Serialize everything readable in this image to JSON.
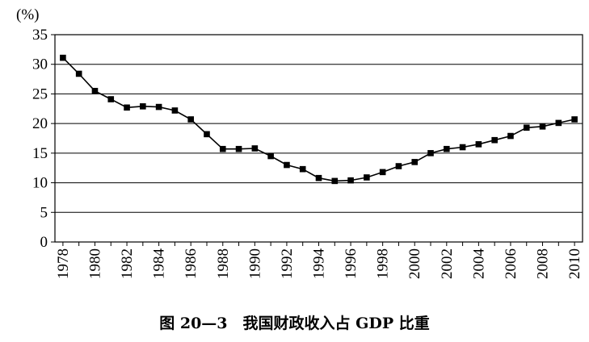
{
  "caption": "图 20—3　我国财政收入占 GDP 比重",
  "chart_data": {
    "type": "line",
    "title": "",
    "xlabel": "",
    "ylabel": "(%)",
    "ylim": [
      0,
      35
    ],
    "yticks": [
      0,
      5,
      10,
      15,
      20,
      25,
      30,
      35
    ],
    "xlim": [
      1977.5,
      2010.5
    ],
    "xticks": [
      1978,
      1980,
      1982,
      1984,
      1986,
      1988,
      1990,
      1992,
      1994,
      1996,
      1998,
      2000,
      2002,
      2004,
      2006,
      2008,
      2010
    ],
    "grid": "horizontal",
    "marker": "square",
    "line_color": "#000000",
    "x": [
      1978,
      1979,
      1980,
      1981,
      1982,
      1983,
      1984,
      1985,
      1986,
      1987,
      1988,
      1989,
      1990,
      1991,
      1992,
      1993,
      1994,
      1995,
      1996,
      1997,
      1998,
      1999,
      2000,
      2001,
      2002,
      2003,
      2004,
      2005,
      2006,
      2007,
      2008,
      2009,
      2010
    ],
    "series": [
      {
        "values": [
          31.1,
          28.4,
          25.5,
          24.1,
          22.7,
          22.9,
          22.8,
          22.2,
          20.7,
          18.2,
          15.7,
          15.7,
          15.8,
          14.5,
          13.0,
          12.3,
          10.8,
          10.3,
          10.4,
          10.9,
          11.8,
          12.8,
          13.5,
          15.0,
          15.7,
          16.0,
          16.5,
          17.2,
          17.9,
          19.3,
          19.5,
          20.1,
          20.7
        ]
      }
    ]
  }
}
